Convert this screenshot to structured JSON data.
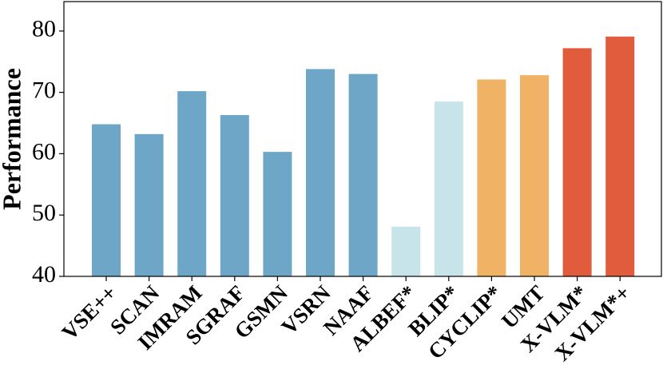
{
  "chart_data": {
    "type": "bar",
    "y_label": "Performance",
    "categories": [
      "VSE++",
      "SCAN",
      "IMRAM",
      "SGRAF",
      "GSMN",
      "VSRN",
      "NAAF",
      "ALBEF*",
      "BLIP*",
      "CYCLIP*",
      "UMT",
      "X-VLM*",
      "X-VLM*+"
    ],
    "values": [
      64.8,
      63.2,
      70.2,
      66.3,
      60.3,
      73.8,
      73.0,
      48.1,
      68.5,
      72.1,
      72.8,
      77.2,
      79.1
    ],
    "colors": [
      "#6ea6c8",
      "#6ea6c8",
      "#6ea6c8",
      "#6ea6c8",
      "#6ea6c8",
      "#6ea6c8",
      "#6ea6c8",
      "#c6e4ea",
      "#c6e4ea",
      "#f0b264",
      "#f0b264",
      "#e05c3c",
      "#e05c3c"
    ],
    "ylim": [
      40,
      84.8
    ],
    "yticks": [
      40,
      50,
      60,
      70,
      80
    ],
    "grid": false
  }
}
